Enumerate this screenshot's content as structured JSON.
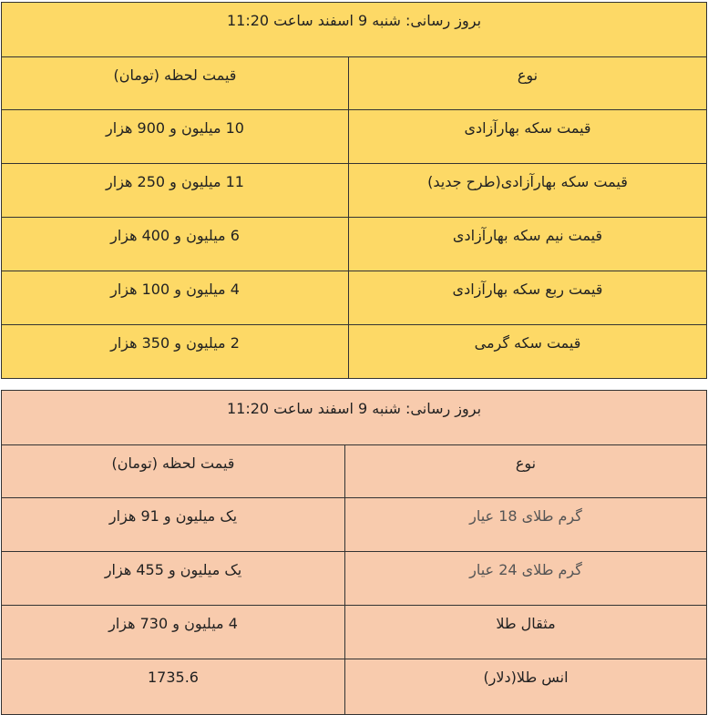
{
  "colors": {
    "coin_table_bg": "#fdd966",
    "gold_table_bg": "#f8cbad",
    "border": "#333333"
  },
  "coin_table": {
    "title": "بروز رسانی: شنبه 9 اسفند ساعت 11:20",
    "headers": {
      "type": "نوع",
      "price": "قیمت لحظه (تومان)"
    },
    "rows": [
      {
        "type": "قیمت سکه بهارآزادی",
        "price": "10 میلیون و 900  هزار"
      },
      {
        "type": "قیمت سکه بهارآزادی(طرح جدید)",
        "price": "11 میلیون و 250 هزار"
      },
      {
        "type": "قیمت نیم سکه بهارآزادی",
        "price": "6 میلیون و 400 هزار"
      },
      {
        "type": "قیمت ربع سکه بهارآزادی",
        "price": "4 میلیون و 100  هزار"
      },
      {
        "type": "قیمت سکه گرمی",
        "price": "2 میلیون و 350 هزار"
      }
    ]
  },
  "gold_table": {
    "title": "بروز رسانی: شنبه 9 اسفند ساعت 11:20",
    "headers": {
      "type": "نوع",
      "price": "قیمت لحظه (تومان)"
    },
    "rows": [
      {
        "type": "گرم طلای 18 عیار",
        "price": "یک میلیون و 91  هزار"
      },
      {
        "type": "گرم طلای 24 عیار",
        "price": "یک میلیون و 455  هزار"
      },
      {
        "type": "مثقال طلا",
        "price": "4 میلیون و 730  هزار"
      },
      {
        "type": "انس طلا(دلار)",
        "price": "1735.6"
      }
    ]
  }
}
